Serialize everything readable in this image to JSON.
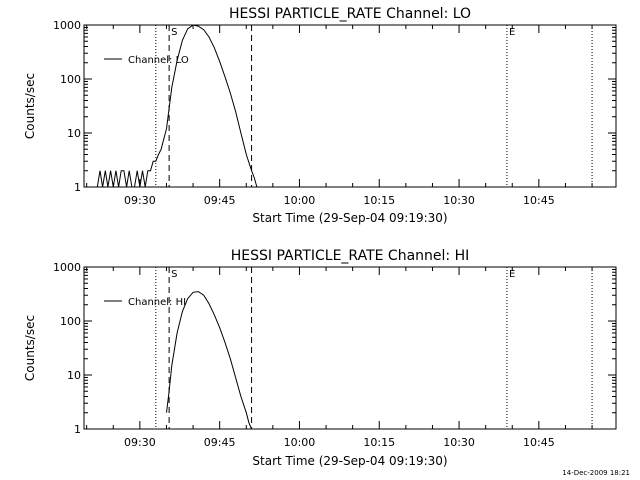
{
  "footer_date": "14-Dec-2009 18:21",
  "chart_data": [
    {
      "type": "line",
      "title": "HESSI PARTICLE_RATE Channel: LO",
      "xlabel": "Start Time (29-Sep-04 09:19:30)",
      "ylabel": "Counts/sec",
      "y_scale": "log",
      "ylim": [
        1,
        1000
      ],
      "y_ticks": [
        1,
        10,
        100,
        1000
      ],
      "y_tick_labels": [
        "1",
        "10",
        "100",
        "1000"
      ],
      "xlim": [
        "09:19:30",
        "10:59:30"
      ],
      "x_ticks": [
        "09:30",
        "09:45",
        "10:00",
        "10:15",
        "10:30",
        "10:45"
      ],
      "legend": {
        "placement": "top-left",
        "entries": [
          "Channel: LO"
        ]
      },
      "markers": [
        {
          "time": "09:33:00",
          "style": "dotted",
          "label": ""
        },
        {
          "time": "09:35:30",
          "style": "dashed",
          "label": "S"
        },
        {
          "time": "09:51:00",
          "style": "dashed",
          "label": ""
        },
        {
          "time": "10:39:00",
          "style": "dotted",
          "label": "E"
        },
        {
          "time": "10:55:00",
          "style": "dotted",
          "label": ""
        }
      ],
      "series": [
        {
          "name": "Channel: LO",
          "x": [
            "09:22:00",
            "09:22:30",
            "09:23:00",
            "09:23:30",
            "09:24:00",
            "09:24:30",
            "09:25:00",
            "09:25:30",
            "09:26:00",
            "09:26:30",
            "09:27:00",
            "09:27:30",
            "09:28:00",
            "09:28:30",
            "09:29:00",
            "09:29:30",
            "09:30:00",
            "09:30:30",
            "09:31:00",
            "09:31:30",
            "09:32:00",
            "09:32:30",
            "09:33:00",
            "09:33:30",
            "09:34:00",
            "09:35:00",
            "09:36:00",
            "09:37:00",
            "09:38:00",
            "09:39:00",
            "09:40:00",
            "09:41:00",
            "09:42:00",
            "09:43:00",
            "09:44:00",
            "09:45:00",
            "09:46:00",
            "09:47:00",
            "09:48:00",
            "09:49:00",
            "09:50:00",
            "09:51:00",
            "09:51:30",
            "09:52:00"
          ],
          "y": [
            1,
            2,
            1,
            2,
            1,
            2,
            1,
            2,
            1,
            2,
            2,
            1,
            2,
            1,
            1,
            2,
            1,
            2,
            1,
            2,
            2,
            3,
            3,
            4,
            5,
            12,
            70,
            220,
            520,
            850,
            1000,
            950,
            820,
            600,
            380,
            210,
            110,
            55,
            25,
            10,
            4,
            2,
            1.5,
            1
          ]
        }
      ]
    },
    {
      "type": "line",
      "title": "HESSI PARTICLE_RATE Channel: HI",
      "xlabel": "Start Time (29-Sep-04 09:19:30)",
      "ylabel": "Counts/sec",
      "y_scale": "log",
      "ylim": [
        1,
        1000
      ],
      "y_ticks": [
        1,
        10,
        100,
        1000
      ],
      "y_tick_labels": [
        "1",
        "10",
        "100",
        "1000"
      ],
      "xlim": [
        "09:19:30",
        "10:59:30"
      ],
      "x_ticks": [
        "09:30",
        "09:45",
        "10:00",
        "10:15",
        "10:30",
        "10:45"
      ],
      "legend": {
        "placement": "top-left",
        "entries": [
          "Channel: HI"
        ]
      },
      "markers": [
        {
          "time": "09:33:00",
          "style": "dotted",
          "label": ""
        },
        {
          "time": "09:35:30",
          "style": "dashed",
          "label": "S"
        },
        {
          "time": "09:51:00",
          "style": "dashed",
          "label": ""
        },
        {
          "time": "10:39:00",
          "style": "dotted",
          "label": "E"
        },
        {
          "time": "10:55:00",
          "style": "dotted",
          "label": ""
        }
      ],
      "series": [
        {
          "name": "Channel: HI",
          "x": [
            "09:35:00",
            "09:35:30",
            "09:36:00",
            "09:37:00",
            "09:38:00",
            "09:39:00",
            "09:40:00",
            "09:41:00",
            "09:42:00",
            "09:43:00",
            "09:44:00",
            "09:45:00",
            "09:46:00",
            "09:47:00",
            "09:48:00",
            "09:49:00",
            "09:50:00",
            "09:50:30",
            "09:51:00"
          ],
          "y": [
            2,
            5,
            15,
            60,
            150,
            260,
            340,
            350,
            300,
            210,
            130,
            75,
            40,
            20,
            9,
            4,
            2,
            1.3,
            1
          ]
        }
      ]
    }
  ]
}
